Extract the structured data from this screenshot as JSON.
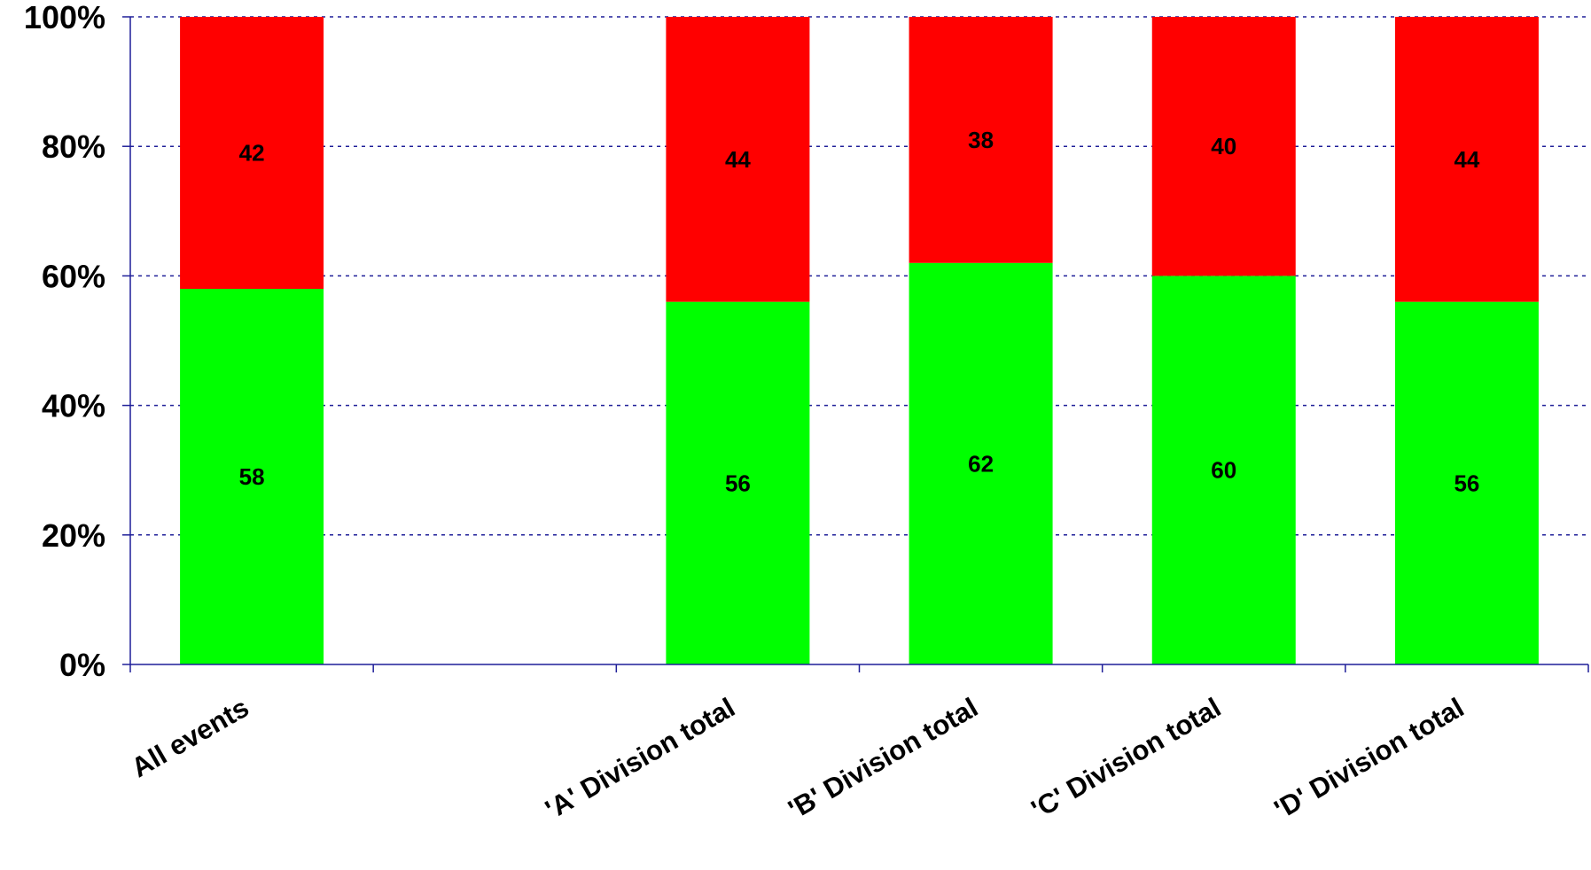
{
  "chart_data": {
    "type": "bar",
    "stacked": true,
    "percent_stacked": true,
    "categories": [
      "All events",
      "",
      "'A' Division total",
      "'B' Division total",
      "'C' Division total",
      "'D' Division total"
    ],
    "series": [
      {
        "values": [
          58,
          null,
          56,
          62,
          60,
          56
        ],
        "color": "#00ff00"
      },
      {
        "values": [
          42,
          null,
          44,
          38,
          40,
          44
        ],
        "color": "#ff0000"
      }
    ],
    "ylim": [
      0,
      100
    ],
    "yticks": [
      "0%",
      "20%",
      "40%",
      "60%",
      "80%",
      "100%"
    ],
    "ytick_values": [
      0,
      20,
      40,
      60,
      80,
      100
    ],
    "grid": true,
    "grid_style": "dotted",
    "grid_color": "#1f1f99",
    "axis_color": "#1f1f99",
    "legend": "none",
    "title": "",
    "xlabel": "",
    "ylabel": ""
  }
}
